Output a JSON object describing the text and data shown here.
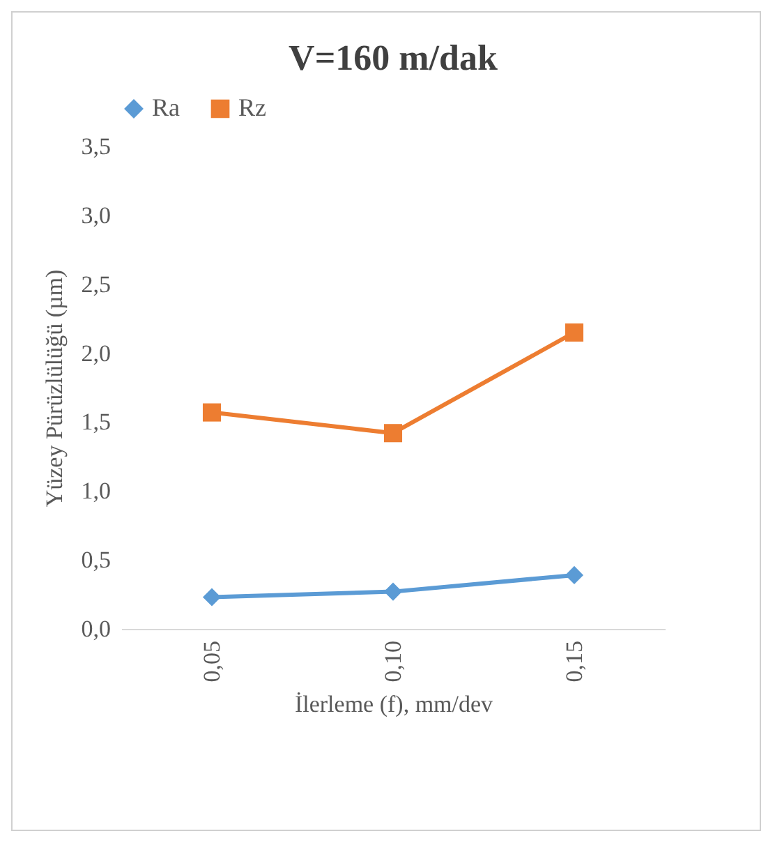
{
  "chart_data": {
    "type": "line",
    "title": "V=160 m/dak",
    "xlabel": "İlerleme (f), mm/dev",
    "ylabel": "Yüzey Pürüzlülüğü (µm)",
    "categories": [
      "0,05",
      "0,10",
      "0,15"
    ],
    "series": [
      {
        "name": "Ra",
        "color": "#5b9bd5",
        "marker": "diamond",
        "values": [
          0.23,
          0.27,
          0.39
        ]
      },
      {
        "name": "Rz",
        "color": "#ed7d31",
        "marker": "square",
        "values": [
          1.57,
          1.42,
          2.15
        ]
      }
    ],
    "ylim": [
      0,
      3.5
    ],
    "yticks": [
      {
        "value": 0,
        "label": "0,0"
      },
      {
        "value": 0.5,
        "label": "0,5"
      },
      {
        "value": 1,
        "label": "1,0"
      },
      {
        "value": 1.5,
        "label": "1,5"
      },
      {
        "value": 2,
        "label": "2,0"
      },
      {
        "value": 2.5,
        "label": "2,5"
      },
      {
        "value": 3,
        "label": "3,0"
      },
      {
        "value": 3.5,
        "label": "3,5"
      }
    ],
    "grid": false,
    "legend": "top",
    "line_style": "solid"
  }
}
